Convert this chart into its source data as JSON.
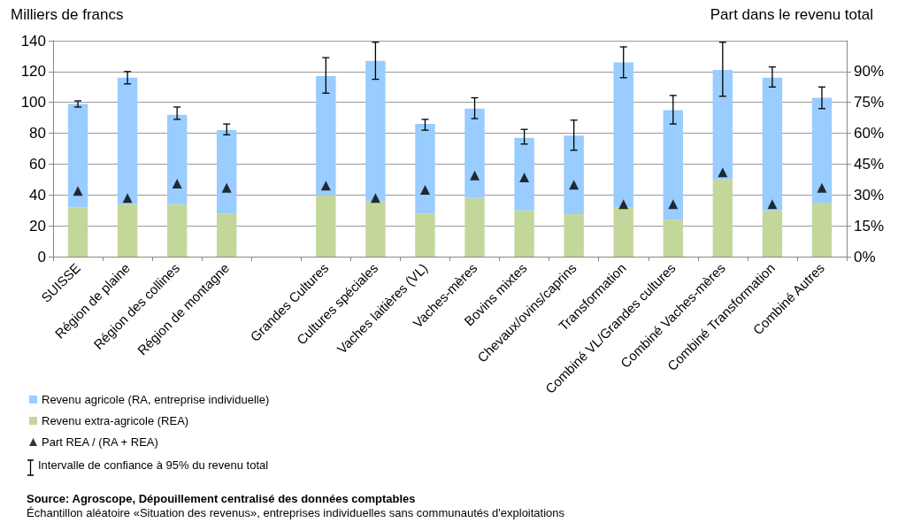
{
  "chart_data": {
    "type": "bar",
    "stacked": true,
    "ylabel": "Milliers de francs",
    "y2label": "Part dans le revenu total",
    "categories": [
      "SUISSE",
      "Région de plaine",
      "Région des collines",
      "Région de montagne",
      null,
      "Grandes Cultures",
      "Cultures spéciales",
      "Vaches laitières (VL)",
      "Vaches-mères",
      "Bovins mixtes",
      "Chevaux/ovins/caprins",
      "Transformation",
      "Combiné VL/Grandes cultures",
      "Combiné Vaches-mères",
      "Combiné Transformation",
      "Combiné Autres"
    ],
    "series": [
      {
        "name": "Revenu extra-agricole (REA)",
        "color": "#c4d79b",
        "values": [
          32,
          34,
          34,
          28,
          null,
          40,
          36,
          28,
          38,
          30,
          27.5,
          32,
          24,
          50,
          30,
          35
        ]
      },
      {
        "name": "Revenu agricole (RA, entreprise individuelle)",
        "color": "#99ccff",
        "values": [
          67,
          82,
          58,
          54,
          null,
          77,
          91,
          58,
          58,
          47,
          51,
          94,
          71,
          71,
          86,
          68
        ],
        "errors": [
          [
            97,
            101
          ],
          [
            112,
            120
          ],
          [
            89,
            97
          ],
          [
            79,
            86
          ],
          null,
          [
            106,
            129
          ],
          [
            115,
            139
          ],
          [
            82,
            89
          ],
          [
            89.5,
            103
          ],
          [
            73,
            82.5
          ],
          [
            69,
            88.5
          ],
          [
            116,
            136
          ],
          [
            86,
            104.5
          ],
          [
            104,
            139
          ],
          [
            110,
            123
          ],
          [
            96,
            110
          ]
        ]
      },
      {
        "name": "Part REA / (RA + REA)",
        "type": "scatter",
        "axis": "y2",
        "color": "#000000",
        "marker": "triangle",
        "x": [
          "SUISSE",
          "Région de plaine",
          "Région des collines",
          "Région de montagne",
          "Grandes Cultures",
          "Cultures spéciales",
          "Vaches laitières (VL)",
          "Vaches-mères",
          "Bovins mixtes",
          "Chevaux/ovins/caprins",
          "Transformation",
          "Combiné VL/Grandes cultures",
          "Combiné Vaches-mères",
          "Combiné Transformation",
          "Combiné Autres"
        ],
        "values": [
          32,
          28.5,
          35.5,
          33.5,
          34.5,
          28.5,
          32.5,
          39.5,
          38.5,
          35,
          25.5,
          25.5,
          41,
          25.5,
          33.5
        ]
      }
    ],
    "ylim": [
      0,
      140
    ],
    "yticks": [
      0,
      20,
      40,
      60,
      80,
      100,
      120,
      140
    ],
    "y2lim": [
      0,
      105
    ],
    "y2ticks": [
      {
        "value": 0,
        "label": "0%"
      },
      {
        "value": 15,
        "label": "15%"
      },
      {
        "value": 30,
        "label": "30%"
      },
      {
        "value": 45,
        "label": "45%"
      },
      {
        "value": 60,
        "label": "60%"
      },
      {
        "value": 75,
        "label": "75%"
      },
      {
        "value": 90,
        "label": "90%"
      }
    ],
    "grid": "y",
    "legend": "bottom left",
    "annotations": [
      "Intervalle de confiance à 95% du revenu total",
      "Source: Agroscope, Dépouillement centralisé des données comptables",
      "Échantillon aléatoire «Situation des revenus», entreprises individuelles sans communautés d'exploitations"
    ]
  }
}
